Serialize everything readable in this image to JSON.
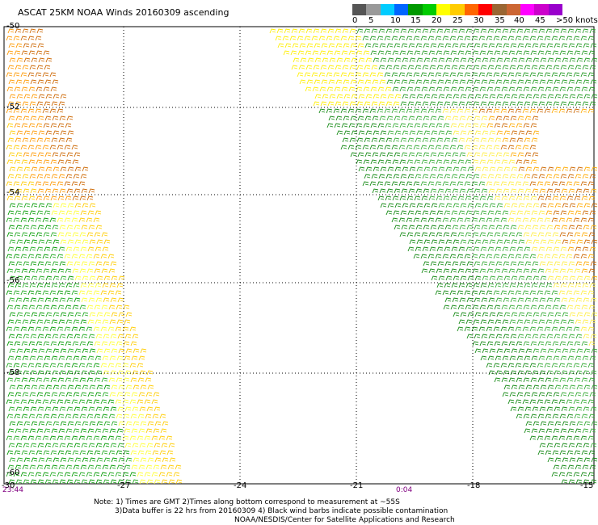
{
  "title": "ASCAT 25KM NOAA Winds 20160309 ascending",
  "colorbar": {
    "colors": [
      "#555555",
      "#999999",
      "#00ccff",
      "#0066ff",
      "#009900",
      "#00cc00",
      "#ffff00",
      "#ffcc00",
      "#ff6600",
      "#ff0000",
      "#996633",
      "#cc6633",
      "#ff00ff",
      "#cc00cc",
      "#9900cc"
    ],
    "labels": [
      "0",
      "5",
      "10",
      "15",
      "20",
      "25",
      "30",
      "35",
      "40",
      "45",
      ">50 knots"
    ]
  },
  "axes": {
    "x_ticks": [
      "-27",
      "-24",
      "-21",
      "-18",
      "-15"
    ],
    "x_tick_left_label": "-30",
    "y_ticks": [
      "-50",
      "-52",
      "-54",
      "-56",
      "-58",
      "-60"
    ]
  },
  "times": {
    "left": "23:44",
    "right": "0:04"
  },
  "notes": {
    "line1": "Note: 1) Times are GMT 2)Times along bottom correspond to measurement at ~55S",
    "line2": "3)Data buffer is 22 hrs from 20160309 4) Black wind barbs indicate possible contamination",
    "line3": "NOAA/NESDIS/Center for Satellite Applications and Research"
  }
}
